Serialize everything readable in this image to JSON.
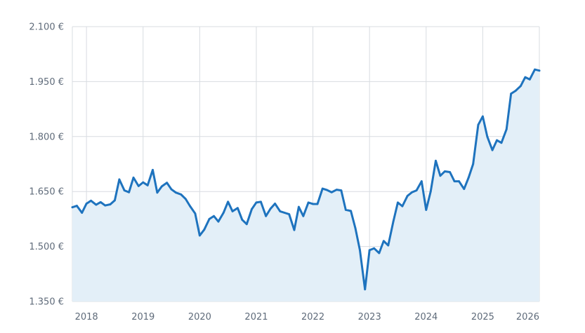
{
  "chart_data": {
    "type": "area",
    "title": "",
    "xlabel": "",
    "ylabel": "",
    "ylim": [
      1350,
      2100
    ],
    "xlim": [
      2017.75,
      2026.0
    ],
    "y_ticks": [
      1350,
      1500,
      1650,
      1800,
      1950,
      2100
    ],
    "y_tick_labels": [
      "1.350 €",
      "1.500 €",
      "1.650 €",
      "1.800 €",
      "1.950 €",
      "2.100 €"
    ],
    "x_ticks": [
      2018,
      2019,
      2020,
      2021,
      2022,
      2023,
      2024,
      2025,
      2026
    ],
    "x_tick_labels": [
      "2018",
      "2019",
      "2020",
      "2021",
      "2022",
      "2023",
      "2024",
      "2025",
      "2026"
    ],
    "grid": true,
    "colors": {
      "line": "#1e73be",
      "fill": "#e3eff8",
      "grid": "#d8dce1",
      "text": "#5f6b7a"
    },
    "series": [
      {
        "x": [
          2017.75,
          2017.83,
          2017.92,
          2018.0,
          2018.08,
          2018.17,
          2018.25,
          2018.33,
          2018.42,
          2018.5,
          2018.58,
          2018.67,
          2018.75,
          2018.83,
          2018.92,
          2019.0,
          2019.08,
          2019.17,
          2019.25,
          2019.33,
          2019.42,
          2019.5,
          2019.58,
          2019.67,
          2019.75,
          2019.83,
          2019.92,
          2020.0,
          2020.08,
          2020.17,
          2020.25,
          2020.33,
          2020.42,
          2020.5,
          2020.58,
          2020.67,
          2020.75,
          2020.83,
          2020.92,
          2021.0,
          2021.08,
          2021.17,
          2021.25,
          2021.33,
          2021.42,
          2021.5,
          2021.58,
          2021.67,
          2021.75,
          2021.83,
          2021.92,
          2022.0,
          2022.08,
          2022.17,
          2022.25,
          2022.33,
          2022.42,
          2022.5,
          2022.58,
          2022.67,
          2022.75,
          2022.83,
          2022.92,
          2023.0,
          2023.08,
          2023.17,
          2023.25,
          2023.33,
          2023.42,
          2023.5,
          2023.58,
          2023.67,
          2023.75,
          2023.83,
          2023.92,
          2024.0,
          2024.08,
          2024.17,
          2024.25,
          2024.33,
          2024.42,
          2024.5,
          2024.58,
          2024.67,
          2024.75,
          2024.83,
          2024.92,
          2025.0,
          2025.08,
          2025.17,
          2025.25,
          2025.33,
          2025.42,
          2025.5,
          2025.58,
          2025.67,
          2025.75,
          2025.83,
          2025.92,
          2026.0
        ],
        "y": [
          1607,
          1611,
          1592,
          1617,
          1625,
          1614,
          1621,
          1612,
          1615,
          1626,
          1683,
          1653,
          1648,
          1688,
          1665,
          1675,
          1667,
          1709,
          1647,
          1664,
          1674,
          1656,
          1647,
          1642,
          1630,
          1610,
          1590,
          1530,
          1546,
          1575,
          1583,
          1568,
          1592,
          1622,
          1596,
          1605,
          1573,
          1561,
          1602,
          1620,
          1622,
          1583,
          1603,
          1617,
          1596,
          1592,
          1588,
          1545,
          1608,
          1583,
          1620,
          1616,
          1616,
          1658,
          1654,
          1648,
          1655,
          1653,
          1600,
          1597,
          1550,
          1490,
          1383,
          1490,
          1495,
          1482,
          1515,
          1503,
          1568,
          1620,
          1610,
          1638,
          1648,
          1653,
          1678,
          1600,
          1650,
          1734,
          1693,
          1705,
          1703,
          1678,
          1678,
          1657,
          1688,
          1725,
          1832,
          1855,
          1800,
          1763,
          1790,
          1783,
          1820,
          1917,
          1925,
          1938,
          1962,
          1956,
          1983,
          1980
        ]
      }
    ]
  }
}
